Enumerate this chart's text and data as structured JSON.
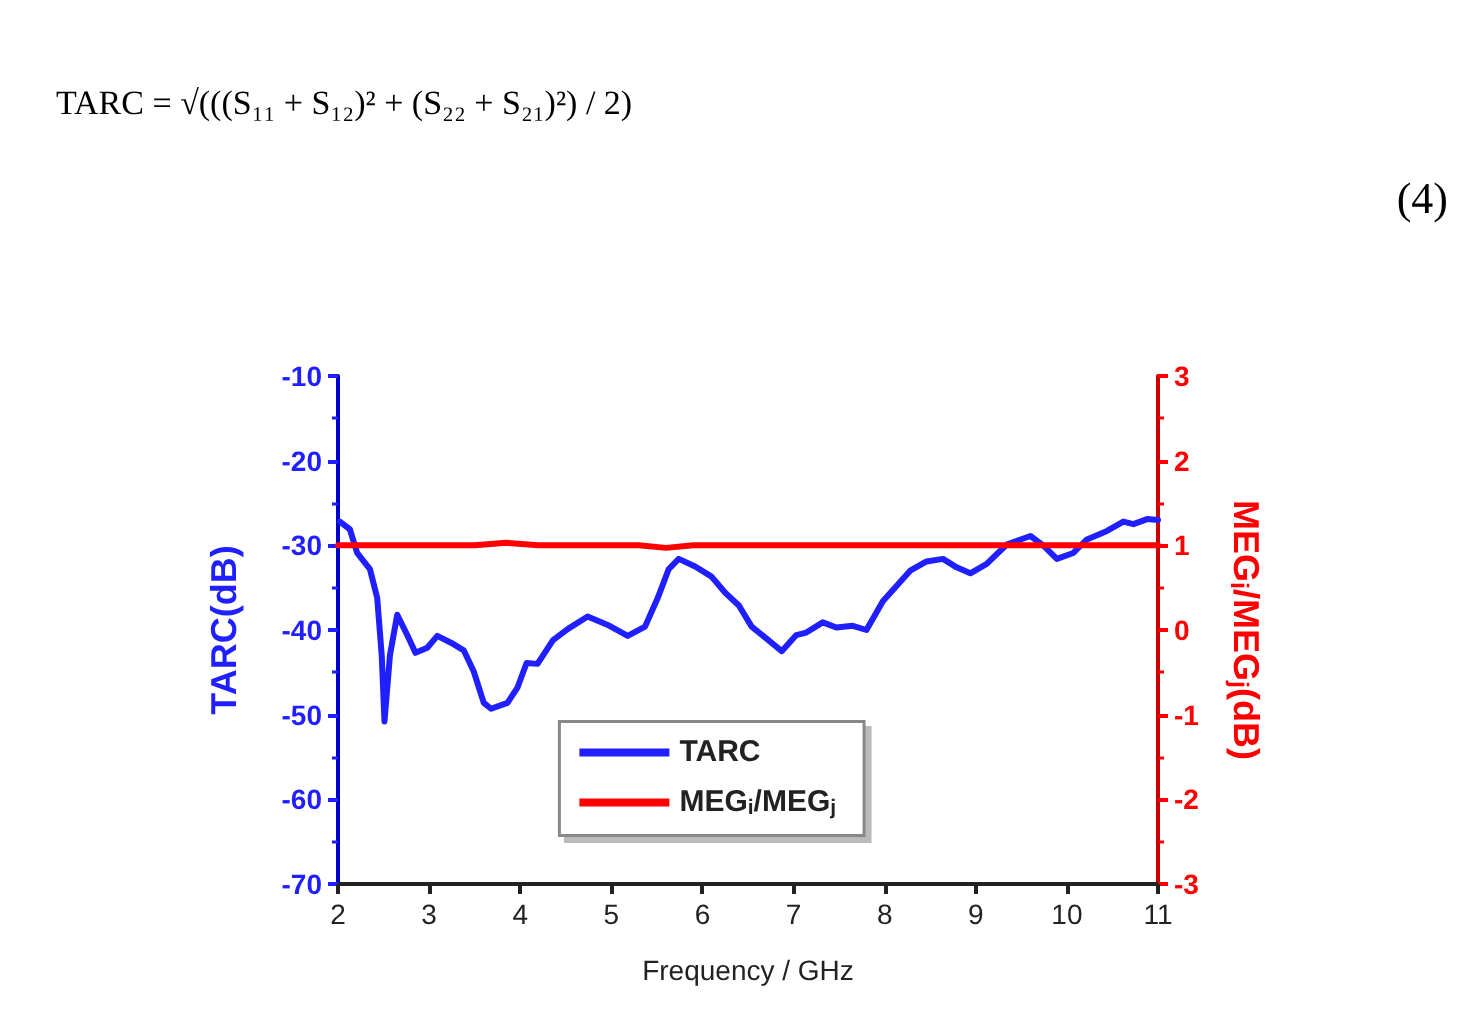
{
  "chart_data": {
    "type": "line",
    "xlabel": "Frequency / GHz",
    "ylabel": "TARC(dB)",
    "y2label": "MEG$_{i}$/MEG$_{j}$(dB)",
    "annotations": [
      "TARC = √(((S₁₁ + S₁₂)² + (S₂₂ + S₂₁)²) / 2)",
      "(4)"
    ],
    "xlim": [
      2,
      11
    ],
    "xticks": [
      2,
      3,
      4,
      5,
      6,
      7,
      8,
      9,
      10,
      11
    ],
    "ylim": [
      -70,
      -10
    ],
    "yticks": [
      -70,
      -60,
      -50,
      -40,
      -30,
      -20,
      -10
    ],
    "y2lim": [
      -3,
      3
    ],
    "y2ticks": [
      -3,
      -2,
      -1,
      0,
      1,
      2,
      3
    ],
    "grid": false,
    "legend": "bottom",
    "marker": "none",
    "line_style": "solid",
    "series": [
      {
        "name": "TARC",
        "color": "#1f1fff",
        "x": [
          2.02,
          2.13,
          2.21,
          2.35,
          2.43,
          2.48,
          2.51,
          2.57,
          2.65,
          2.76,
          2.85,
          2.98,
          3.09,
          3.24,
          3.38,
          3.49,
          3.6,
          3.68,
          3.86,
          3.97,
          4.07,
          4.19,
          4.36,
          4.52,
          4.74,
          4.96,
          5.18,
          5.37,
          5.51,
          5.63,
          5.74,
          5.92,
          6.1,
          6.25,
          6.4,
          6.54,
          6.69,
          6.87,
          7.03,
          7.14,
          7.32,
          7.47,
          7.65,
          7.8,
          7.98,
          8.28,
          8.46,
          8.64,
          8.79,
          8.94,
          9.12,
          9.34,
          9.6,
          9.74,
          9.89,
          10.07,
          10.22,
          10.44,
          10.62,
          10.73,
          10.88,
          11
        ],
        "values": [
          -27.2,
          -28.1,
          -30.9,
          -32.8,
          -36.2,
          -43,
          -50.8,
          -43,
          -38.2,
          -40.6,
          -42.7,
          -42.1,
          -40.7,
          -41.5,
          -42.4,
          -44.9,
          -48.6,
          -49.3,
          -48.6,
          -46.8,
          -43.9,
          -44,
          -41.2,
          -39.9,
          -38.4,
          -39.4,
          -40.7,
          -39.6,
          -36.2,
          -32.8,
          -31.6,
          -32.5,
          -33.7,
          -35.6,
          -37.1,
          -39.6,
          -40.9,
          -42.5,
          -40.6,
          -40.3,
          -39.1,
          -39.7,
          -39.5,
          -40,
          -36.6,
          -33,
          -31.9,
          -31.6,
          -32.6,
          -33.3,
          -32.2,
          -29.9,
          -28.9,
          -30,
          -31.6,
          -30.9,
          -29.3,
          -28.3,
          -27.2,
          -27.5,
          -26.9,
          -27
        ]
      },
      {
        "name": "MEG$_{i}$/MEG$_{j}$",
        "color": "#ff0000",
        "axis": "y2",
        "x": [
          2,
          3.5,
          3.85,
          4.2,
          5.3,
          5.6,
          5.9,
          11
        ],
        "values": [
          1,
          1,
          1.03,
          1,
          1,
          0.97,
          1,
          1
        ]
      }
    ]
  }
}
